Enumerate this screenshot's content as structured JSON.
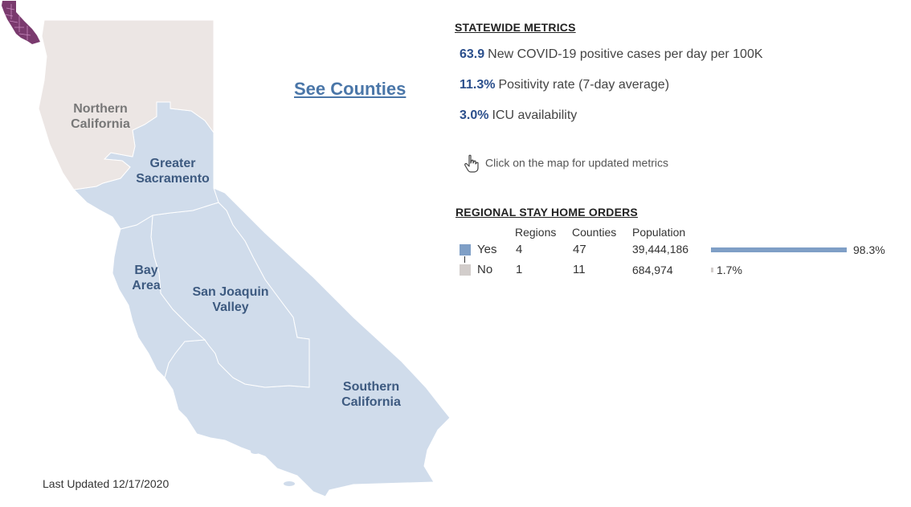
{
  "regions": {
    "northern": "Northern California",
    "sacramento": "Greater Sacramento",
    "bay": "Bay Area",
    "sanjoaquin": "San Joaquin Valley",
    "southern": "Southern California"
  },
  "colors": {
    "stay_home_yes": "#7f9fc6",
    "stay_home_no": "#d2cdcb",
    "region_yes_fill": "#d0dceb",
    "region_no_fill": "#ece6e4",
    "metric_value": "#2b4f8c",
    "counties_icon": "#7a3a6e"
  },
  "see_counties": "See Counties",
  "last_updated": "Last Updated 12/17/2020",
  "statewide": {
    "title": "STATEWIDE METRICS",
    "metrics": [
      {
        "value": "63.9",
        "label": "New COVID-19 positive cases per day per 100K"
      },
      {
        "value": "11.3%",
        "label": "Positivity rate (7-day average)"
      },
      {
        "value": "3.0%",
        "label": "ICU availability"
      }
    ],
    "hint": "Click on the map for updated metrics",
    "hint_icon": "pointer-hand-icon"
  },
  "orders": {
    "title": "REGIONAL STAY HOME ORDERS",
    "columns": [
      "Regions",
      "Counties",
      "Population"
    ],
    "rows": [
      {
        "label": "Yes",
        "regions": "4",
        "counties": "47",
        "population": "39,444,186",
        "share": 0.983,
        "pct": "98.3%"
      },
      {
        "label": "No",
        "regions": "1",
        "counties": "11",
        "population": "684,974",
        "share": 0.017,
        "pct": "1.7%"
      }
    ]
  }
}
